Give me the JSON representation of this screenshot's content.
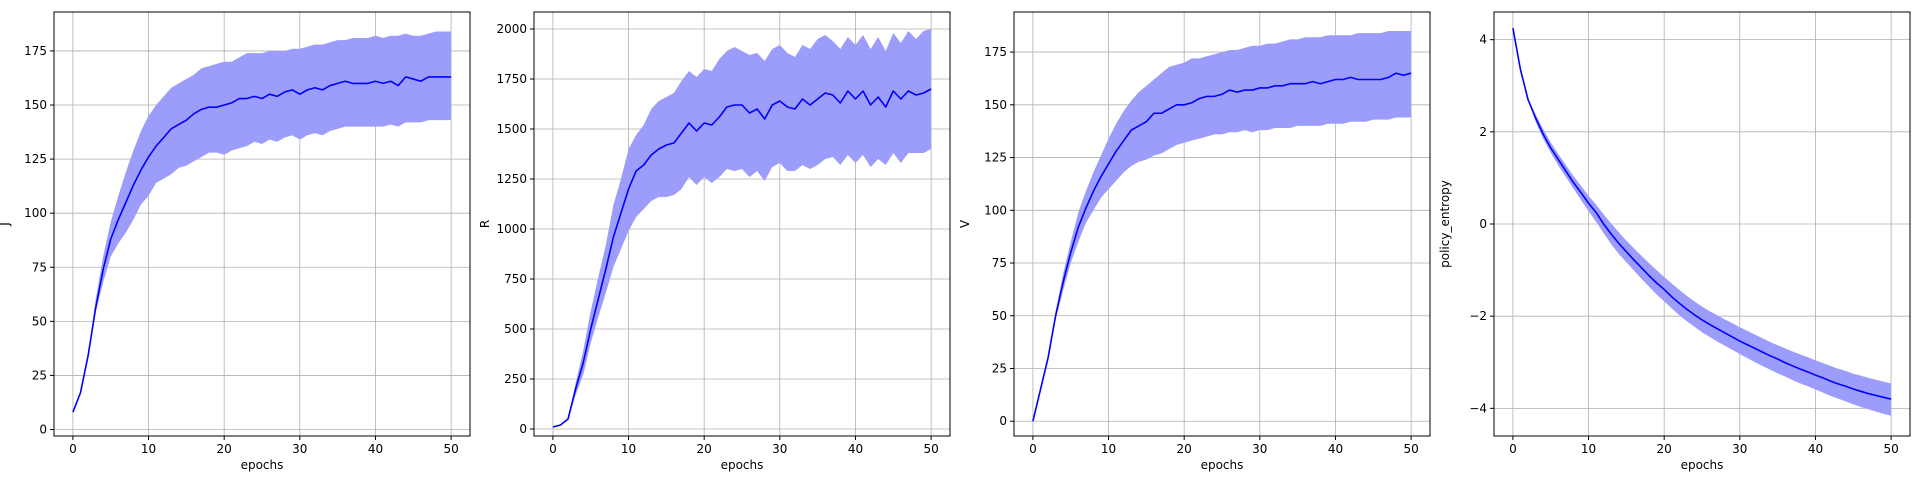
{
  "colors": {
    "line": "#0000ff",
    "band": "#9c9cfb",
    "grid": "#b0b0b0",
    "frame": "#000000"
  },
  "chart_data": [
    {
      "type": "line",
      "xlabel": "epochs",
      "ylabel": "J",
      "grid": true,
      "xlim": [
        -2.5,
        52.5
      ],
      "ylim": [
        -3,
        193
      ],
      "xticks": [
        0,
        10,
        20,
        30,
        40,
        50
      ],
      "xtick_labels": [
        "0",
        "10",
        "20",
        "30",
        "40",
        "50"
      ],
      "yticks": [
        0,
        25,
        50,
        75,
        100,
        125,
        150,
        175
      ],
      "ytick_labels": [
        "0",
        "25",
        "50",
        "75",
        "100",
        "125",
        "150",
        "175"
      ],
      "series": [
        {
          "x": [
            0,
            1,
            2,
            3,
            4,
            5,
            6,
            7,
            8,
            9,
            10,
            11,
            12,
            13,
            14,
            15,
            16,
            17,
            18,
            19,
            20,
            21,
            22,
            23,
            24,
            25,
            26,
            27,
            28,
            29,
            30,
            31,
            32,
            33,
            34,
            35,
            36,
            37,
            38,
            39,
            40,
            41,
            42,
            43,
            44,
            45,
            46,
            47,
            48,
            49,
            50
          ],
          "y": [
            8,
            17,
            34,
            56,
            74,
            88,
            97,
            105,
            113,
            120,
            126,
            131,
            135,
            139,
            141,
            143,
            146,
            148,
            149,
            149,
            150,
            151,
            153,
            153,
            154,
            153,
            155,
            154,
            156,
            157,
            155,
            157,
            158,
            157,
            159,
            160,
            161,
            160,
            160,
            160,
            161,
            160,
            161,
            159,
            163,
            162,
            161,
            163,
            163,
            163,
            163
          ],
          "lower": [
            8,
            17,
            34,
            54,
            68,
            80,
            86,
            91,
            97,
            104,
            108,
            114,
            116,
            118,
            121,
            122,
            124,
            126,
            128,
            128,
            127,
            129,
            130,
            131,
            133,
            132,
            134,
            133,
            135,
            136,
            134,
            136,
            137,
            136,
            138,
            139,
            140,
            140,
            140,
            140,
            140,
            140,
            141,
            140,
            142,
            142,
            142,
            143,
            143,
            143,
            143
          ],
          "upper": [
            8,
            17,
            34,
            60,
            80,
            96,
            108,
            119,
            129,
            138,
            145,
            150,
            154,
            158,
            160,
            162,
            164,
            167,
            168,
            169,
            170,
            170,
            172,
            174,
            174,
            174,
            175,
            175,
            175,
            176,
            176,
            177,
            178,
            178,
            179,
            180,
            180,
            181,
            181,
            181,
            182,
            181,
            182,
            182,
            183,
            182,
            182,
            183,
            184,
            184,
            184
          ]
        }
      ]
    },
    {
      "type": "line",
      "xlabel": "epochs",
      "ylabel": "R",
      "grid": true,
      "xlim": [
        -2.5,
        52.5
      ],
      "ylim": [
        -35,
        2085
      ],
      "xticks": [
        0,
        10,
        20,
        30,
        40,
        50
      ],
      "xtick_labels": [
        "0",
        "10",
        "20",
        "30",
        "40",
        "50"
      ],
      "yticks": [
        0,
        250,
        500,
        750,
        1000,
        1250,
        1500,
        1750,
        2000
      ],
      "ytick_labels": [
        "0",
        "250",
        "500",
        "750",
        "1000",
        "1250",
        "1500",
        "1750",
        "2000"
      ],
      "series": [
        {
          "x": [
            0,
            1,
            2,
            3,
            4,
            5,
            6,
            7,
            8,
            9,
            10,
            11,
            12,
            13,
            14,
            15,
            16,
            17,
            18,
            19,
            20,
            21,
            22,
            23,
            24,
            25,
            26,
            27,
            28,
            29,
            30,
            31,
            32,
            33,
            34,
            35,
            36,
            37,
            38,
            39,
            40,
            41,
            42,
            43,
            44,
            45,
            46,
            47,
            48,
            49,
            50
          ],
          "y": [
            10,
            20,
            50,
            200,
            330,
            500,
            650,
            800,
            960,
            1080,
            1200,
            1290,
            1320,
            1370,
            1400,
            1420,
            1430,
            1480,
            1530,
            1490,
            1530,
            1520,
            1560,
            1610,
            1620,
            1620,
            1580,
            1600,
            1550,
            1620,
            1640,
            1610,
            1600,
            1650,
            1620,
            1650,
            1680,
            1670,
            1630,
            1690,
            1650,
            1690,
            1620,
            1660,
            1610,
            1690,
            1650,
            1690,
            1670,
            1680,
            1700
          ],
          "lower": [
            10,
            20,
            50,
            170,
            270,
            430,
            560,
            680,
            810,
            900,
            990,
            1060,
            1100,
            1140,
            1160,
            1160,
            1170,
            1200,
            1260,
            1220,
            1260,
            1230,
            1260,
            1300,
            1290,
            1300,
            1260,
            1290,
            1240,
            1310,
            1330,
            1290,
            1290,
            1320,
            1300,
            1320,
            1350,
            1360,
            1320,
            1370,
            1330,
            1370,
            1310,
            1350,
            1320,
            1380,
            1330,
            1380,
            1380,
            1380,
            1400
          ],
          "upper": [
            10,
            20,
            50,
            230,
            390,
            590,
            760,
            920,
            1120,
            1250,
            1400,
            1470,
            1520,
            1600,
            1640,
            1660,
            1680,
            1740,
            1790,
            1760,
            1800,
            1790,
            1850,
            1890,
            1910,
            1890,
            1870,
            1880,
            1840,
            1900,
            1920,
            1880,
            1860,
            1920,
            1900,
            1950,
            1970,
            1940,
            1900,
            1960,
            1920,
            1970,
            1900,
            1960,
            1890,
            1980,
            1930,
            1990,
            1950,
            1990,
            2000
          ]
        }
      ]
    },
    {
      "type": "line",
      "xlabel": "epochs",
      "ylabel": "V",
      "grid": true,
      "xlim": [
        -2.5,
        52.5
      ],
      "ylim": [
        -7,
        194
      ],
      "xticks": [
        0,
        10,
        20,
        30,
        40,
        50
      ],
      "xtick_labels": [
        "0",
        "10",
        "20",
        "30",
        "40",
        "50"
      ],
      "yticks": [
        0,
        25,
        50,
        75,
        100,
        125,
        150,
        175
      ],
      "ytick_labels": [
        "0",
        "25",
        "50",
        "75",
        "100",
        "125",
        "150",
        "175"
      ],
      "series": [
        {
          "x": [
            0,
            1,
            2,
            3,
            4,
            5,
            6,
            7,
            8,
            9,
            10,
            11,
            12,
            13,
            14,
            15,
            16,
            17,
            18,
            19,
            20,
            21,
            22,
            23,
            24,
            25,
            26,
            27,
            28,
            29,
            30,
            31,
            32,
            33,
            34,
            35,
            36,
            37,
            38,
            39,
            40,
            41,
            42,
            43,
            44,
            45,
            46,
            47,
            48,
            49,
            50
          ],
          "y": [
            0,
            15,
            30,
            50,
            66,
            80,
            92,
            101,
            109,
            116,
            122,
            128,
            133,
            138,
            140,
            142,
            146,
            146,
            148,
            150,
            150,
            151,
            153,
            154,
            154,
            155,
            157,
            156,
            157,
            157,
            158,
            158,
            159,
            159,
            160,
            160,
            160,
            161,
            160,
            161,
            162,
            162,
            163,
            162,
            162,
            162,
            162,
            163,
            165,
            164,
            165
          ],
          "lower": [
            0,
            15,
            30,
            48,
            62,
            75,
            85,
            94,
            100,
            106,
            110,
            114,
            118,
            121,
            123,
            124,
            126,
            127,
            129,
            131,
            132,
            133,
            134,
            135,
            136,
            136,
            137,
            137,
            138,
            137,
            138,
            138,
            139,
            139,
            139,
            140,
            140,
            140,
            140,
            141,
            141,
            141,
            142,
            142,
            142,
            143,
            143,
            143,
            144,
            144,
            144
          ],
          "upper": [
            0,
            15,
            30,
            52,
            70,
            85,
            99,
            109,
            118,
            126,
            134,
            141,
            147,
            152,
            156,
            159,
            162,
            165,
            168,
            169,
            170,
            172,
            172,
            173,
            174,
            175,
            176,
            176,
            177,
            178,
            178,
            179,
            179,
            180,
            181,
            181,
            182,
            182,
            182,
            183,
            183,
            183,
            183,
            184,
            184,
            184,
            184,
            185,
            185,
            185,
            185
          ]
        }
      ]
    },
    {
      "type": "line",
      "xlabel": "epochs",
      "ylabel": "policy_entropy",
      "grid": true,
      "xlim": [
        -2.5,
        52.5
      ],
      "ylim": [
        -4.6,
        4.6
      ],
      "xticks": [
        0,
        10,
        20,
        30,
        40,
        50
      ],
      "xtick_labels": [
        "0",
        "10",
        "20",
        "30",
        "40",
        "50"
      ],
      "yticks": [
        -4,
        -2,
        0,
        2,
        4
      ],
      "ytick_labels": [
        "−4",
        "−2",
        "0",
        "2",
        "4"
      ],
      "series": [
        {
          "x": [
            0,
            1,
            2,
            3,
            4,
            5,
            6,
            7,
            8,
            9,
            10,
            11,
            12,
            13,
            14,
            15,
            16,
            17,
            18,
            19,
            20,
            21,
            22,
            23,
            24,
            25,
            26,
            27,
            28,
            29,
            30,
            31,
            32,
            33,
            34,
            35,
            36,
            37,
            38,
            39,
            40,
            41,
            42,
            43,
            44,
            45,
            46,
            47,
            48,
            49,
            50
          ],
          "y": [
            4.25,
            3.35,
            2.7,
            2.3,
            1.95,
            1.65,
            1.4,
            1.15,
            0.9,
            0.68,
            0.45,
            0.25,
            0.0,
            -0.22,
            -0.42,
            -0.6,
            -0.78,
            -0.95,
            -1.12,
            -1.28,
            -1.42,
            -1.58,
            -1.72,
            -1.85,
            -1.97,
            -2.08,
            -2.18,
            -2.27,
            -2.36,
            -2.45,
            -2.54,
            -2.62,
            -2.7,
            -2.78,
            -2.86,
            -2.93,
            -3.01,
            -3.08,
            -3.15,
            -3.21,
            -3.28,
            -3.34,
            -3.41,
            -3.47,
            -3.52,
            -3.58,
            -3.63,
            -3.68,
            -3.72,
            -3.76,
            -3.8
          ],
          "lower": [
            4.25,
            3.35,
            2.7,
            2.22,
            1.85,
            1.55,
            1.27,
            1.02,
            0.77,
            0.52,
            0.28,
            0.05,
            -0.2,
            -0.44,
            -0.65,
            -0.83,
            -1.01,
            -1.19,
            -1.36,
            -1.53,
            -1.68,
            -1.83,
            -1.98,
            -2.11,
            -2.23,
            -2.35,
            -2.45,
            -2.55,
            -2.64,
            -2.73,
            -2.82,
            -2.91,
            -3.0,
            -3.08,
            -3.16,
            -3.24,
            -3.31,
            -3.39,
            -3.46,
            -3.52,
            -3.59,
            -3.66,
            -3.73,
            -3.79,
            -3.85,
            -3.91,
            -3.97,
            -4.02,
            -4.07,
            -4.12,
            -4.16
          ],
          "upper": [
            4.25,
            3.35,
            2.72,
            2.38,
            2.06,
            1.77,
            1.52,
            1.28,
            1.04,
            0.83,
            0.61,
            0.42,
            0.21,
            0.01,
            -0.18,
            -0.36,
            -0.53,
            -0.69,
            -0.85,
            -1.0,
            -1.15,
            -1.29,
            -1.43,
            -1.56,
            -1.68,
            -1.79,
            -1.89,
            -1.98,
            -2.07,
            -2.15,
            -2.24,
            -2.32,
            -2.4,
            -2.48,
            -2.56,
            -2.63,
            -2.7,
            -2.77,
            -2.83,
            -2.89,
            -2.96,
            -3.02,
            -3.08,
            -3.14,
            -3.19,
            -3.25,
            -3.29,
            -3.34,
            -3.38,
            -3.42,
            -3.46
          ]
        }
      ]
    }
  ]
}
